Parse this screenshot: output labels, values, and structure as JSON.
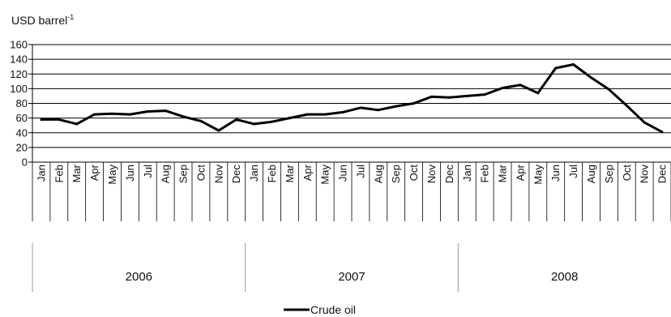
{
  "chart_data": {
    "type": "line",
    "y_unit_label": "USD barrel",
    "y_unit_superscript": "-1",
    "ylim": [
      0,
      160
    ],
    "yticks": [
      0,
      20,
      40,
      60,
      80,
      100,
      120,
      140,
      160
    ],
    "grid": true,
    "categories": [
      "Jan",
      "Feb",
      "Mar",
      "Apr",
      "May",
      "Jun",
      "Jul",
      "Aug",
      "Sep",
      "Oct",
      "Nov",
      "Dec",
      "Jan",
      "Feb",
      "Mar",
      "Apr",
      "May",
      "Jun",
      "Jul",
      "Aug",
      "Sep",
      "Oct",
      "Nov",
      "Dec",
      "Jan",
      "Feb",
      "Mar",
      "Apr",
      "May",
      "Jun",
      "Jul",
      "Aug",
      "Sep",
      "Oct",
      "Nov",
      "Dec"
    ],
    "year_groups": [
      {
        "label": "2006",
        "count": 12
      },
      {
        "label": "2007",
        "count": 12
      },
      {
        "label": "2008",
        "count": 12
      }
    ],
    "series": [
      {
        "name": "Crude oil",
        "color": "#000000",
        "values": [
          58,
          58,
          52,
          65,
          66,
          65,
          69,
          70,
          62,
          56,
          43,
          58,
          52,
          55,
          60,
          65,
          65,
          68,
          74,
          71,
          76,
          80,
          89,
          88,
          90,
          92,
          101,
          105,
          94,
          128,
          133,
          115,
          99,
          77,
          54,
          41
        ]
      }
    ],
    "legend_position": "bottom-center"
  }
}
